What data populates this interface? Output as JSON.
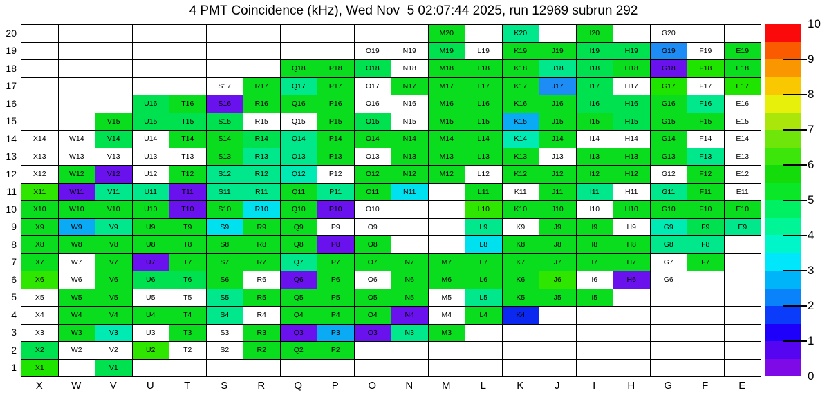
{
  "chart_data": {
    "type": "heatmap",
    "title": "4 PMT Coincidence (kHz), Wed Nov  5 02:07:44 2025, run 12969 subrun 292",
    "units": "kHz",
    "x_categories": [
      "X",
      "W",
      "V",
      "U",
      "T",
      "S",
      "R",
      "Q",
      "P",
      "O",
      "N",
      "M",
      "L",
      "K",
      "J",
      "I",
      "H",
      "G",
      "F",
      "E"
    ],
    "y_categories": [
      20,
      19,
      18,
      17,
      16,
      15,
      14,
      13,
      12,
      11,
      10,
      9,
      8,
      7,
      6,
      5,
      4,
      3,
      2,
      1
    ],
    "legend_note": "cells: '-' = empty white cell (no label), 'w' = labeled cell with no data (white), other codes = palette key",
    "palette": {
      "vio": {
        "color": "#6a12ee",
        "value": 0.4
      },
      "blu": {
        "color": "#0b28f0",
        "value": 1.3
      },
      "dod": {
        "color": "#1e8cf5",
        "value": 2.3
      },
      "sky": {
        "color": "#0aaaf5",
        "value": 2.8
      },
      "c": {
        "color": "#00e1f0",
        "value": 3.3
      },
      "t": {
        "color": "#00ebb4",
        "value": 3.8
      },
      "g4": {
        "color": "#00e78c",
        "value": 4.3
      },
      "g45": {
        "color": "#00e150",
        "value": 4.7
      },
      "g5": {
        "color": "#0adc1e",
        "value": 5.2
      },
      "g6": {
        "color": "#1ee400",
        "value": 5.7
      },
      "yg": {
        "color": "#2ee600",
        "value": 6.1
      }
    },
    "rows": [
      {
        "y": 20,
        "states": [
          "-",
          "-",
          "-",
          "-",
          "-",
          "-",
          "-",
          "-",
          "-",
          "-",
          "-",
          "g5",
          "-",
          "g4",
          "-",
          "g5",
          "-",
          "w",
          "-",
          "-"
        ]
      },
      {
        "y": 19,
        "states": [
          "-",
          "-",
          "-",
          "-",
          "-",
          "-",
          "-",
          "-",
          "-",
          "w",
          "w",
          "g45",
          "w",
          "g5",
          "g5",
          "g45",
          "g45",
          "dod",
          "w",
          "g5"
        ]
      },
      {
        "y": 18,
        "states": [
          "-",
          "-",
          "-",
          "-",
          "-",
          "-",
          "-",
          "g5",
          "g5",
          "g45",
          "w",
          "g5",
          "g5",
          "g5",
          "g4",
          "g45",
          "g5",
          "vio",
          "g6",
          "g5"
        ]
      },
      {
        "y": 17,
        "states": [
          "-",
          "-",
          "-",
          "-",
          "-",
          "w",
          "g5",
          "g4",
          "g5",
          "w",
          "g5",
          "g5",
          "g5",
          "g5",
          "dod",
          "g45",
          "w",
          "g6",
          "w",
          "g6"
        ]
      },
      {
        "y": 16,
        "states": [
          "-",
          "-",
          "-",
          "g45",
          "g5",
          "vio",
          "g5",
          "g5",
          "g5",
          "w",
          "w",
          "g5",
          "g5",
          "g5",
          "g5",
          "g45",
          "g45",
          "g5",
          "g4",
          "w"
        ]
      },
      {
        "y": 15,
        "states": [
          "-",
          "-",
          "g5",
          "g45",
          "g45",
          "g45",
          "w",
          "w",
          "g5",
          "g45",
          "w",
          "g5",
          "g5",
          "sky",
          "g5",
          "g5",
          "g45",
          "g5",
          "g5",
          "w"
        ]
      },
      {
        "y": 14,
        "states": [
          "w",
          "w",
          "g45",
          "w",
          "g5",
          "g5",
          "g45",
          "g4",
          "g5",
          "g5",
          "g5",
          "g5",
          "g5",
          "t",
          "g5",
          "w",
          "w",
          "g5",
          "w",
          "w"
        ]
      },
      {
        "y": 13,
        "states": [
          "w",
          "w",
          "w",
          "w",
          "w",
          "g5",
          "g4",
          "g4",
          "g5",
          "w",
          "g5",
          "g5",
          "g5",
          "g5",
          "w",
          "g5",
          "g5",
          "g5",
          "g4",
          "w"
        ]
      },
      {
        "y": 12,
        "states": [
          "w",
          "g5",
          "vio",
          "w",
          "g5",
          "g4",
          "g4",
          "t",
          "w",
          "g5",
          "g5",
          "g5",
          "w",
          "g5",
          "g5",
          "g5",
          "g5",
          "w",
          "g5",
          "w"
        ]
      },
      {
        "y": 11,
        "states": [
          "yg",
          "vio",
          "g4",
          "g4",
          "vio",
          "g4",
          "g4",
          "g5",
          "g4",
          "g5",
          "c",
          "-",
          "g5",
          "w",
          "g5",
          "g4",
          "w",
          "g4",
          "g5",
          "w"
        ]
      },
      {
        "y": 10,
        "states": [
          "g5",
          "g5",
          "g5",
          "g5",
          "vio",
          "g5",
          "c",
          "g5",
          "vio",
          "w",
          "-",
          "-",
          "yg",
          "g5",
          "g5",
          "w",
          "g5",
          "g5",
          "g5",
          "g5"
        ]
      },
      {
        "y": 9,
        "states": [
          "g5",
          "sky",
          "g4",
          "g5",
          "g5",
          "c",
          "g5",
          "g5",
          "w",
          "w",
          "-",
          "-",
          "g4",
          "w",
          "g5",
          "g5",
          "w",
          "t",
          "g45",
          "g4"
        ]
      },
      {
        "y": 8,
        "states": [
          "g5",
          "g5",
          "g5",
          "g5",
          "g5",
          "g5",
          "g5",
          "g5",
          "vio",
          "g5",
          "-",
          "-",
          "c",
          "g5",
          "g5",
          "g5",
          "g5",
          "g4",
          "g4",
          "-"
        ]
      },
      {
        "y": 7,
        "states": [
          "g5",
          "w",
          "g5",
          "vio",
          "g5",
          "g5",
          "g5",
          "g4",
          "g5",
          "g5",
          "g5",
          "g5",
          "g5",
          "g5",
          "g5",
          "g5",
          "g5",
          "w",
          "g5",
          "-"
        ]
      },
      {
        "y": 6,
        "states": [
          "yg",
          "w",
          "g5",
          "g45",
          "g45",
          "g5",
          "w",
          "vio",
          "g5",
          "w",
          "g5",
          "g5",
          "g5",
          "g5",
          "yg",
          "w",
          "vio",
          "w",
          "-",
          "-"
        ]
      },
      {
        "y": 5,
        "states": [
          "w",
          "g5",
          "g5",
          "w",
          "w",
          "g4",
          "g5",
          "g5",
          "g5",
          "g5",
          "g5",
          "w",
          "g4",
          "g5",
          "g5",
          "g5",
          "-",
          "-",
          "-",
          "-"
        ]
      },
      {
        "y": 4,
        "states": [
          "w",
          "g5",
          "g5",
          "g5",
          "g5",
          "g4",
          "w",
          "g5",
          "g5",
          "g5",
          "vio",
          "w",
          "g5",
          "blu",
          "-",
          "-",
          "-",
          "-",
          "-",
          "-"
        ]
      },
      {
        "y": 3,
        "states": [
          "w",
          "g5",
          "t",
          "w",
          "g5",
          "w",
          "g5",
          "vio",
          "sky",
          "vio",
          "g4",
          "g5",
          "-",
          "-",
          "-",
          "-",
          "-",
          "-",
          "-",
          "-"
        ]
      },
      {
        "y": 2,
        "states": [
          "g45",
          "w",
          "w",
          "yg",
          "w",
          "w",
          "g5",
          "g5",
          "g5",
          "-",
          "-",
          "-",
          "-",
          "-",
          "-",
          "-",
          "-",
          "-",
          "-",
          "-"
        ]
      },
      {
        "y": 1,
        "states": [
          "g6",
          "-",
          "g45",
          "-",
          "-",
          "-",
          "-",
          "-",
          "-",
          "-",
          "-",
          "-",
          "-",
          "-",
          "-",
          "-",
          "-",
          "-",
          "-",
          "-"
        ]
      }
    ],
    "colorbar": {
      "min": 0,
      "max": 10,
      "tick_labels": [
        "0",
        "1",
        "2",
        "3",
        "4",
        "5",
        "6",
        "7",
        "8",
        "9",
        "10"
      ],
      "band_colors_bottom_to_top": [
        "#7f0ae8",
        "#5505f0",
        "#1e00fa",
        "#0a3cfa",
        "#0a82fa",
        "#00b4fa",
        "#00e6fa",
        "#00f5c8",
        "#00f596",
        "#00f064",
        "#0ae628",
        "#14dc0a",
        "#3ce60a",
        "#6ee60a",
        "#aae60a",
        "#e6f00a",
        "#fac800",
        "#fa9600",
        "#fa5a00",
        "#fa0a0a"
      ]
    }
  }
}
